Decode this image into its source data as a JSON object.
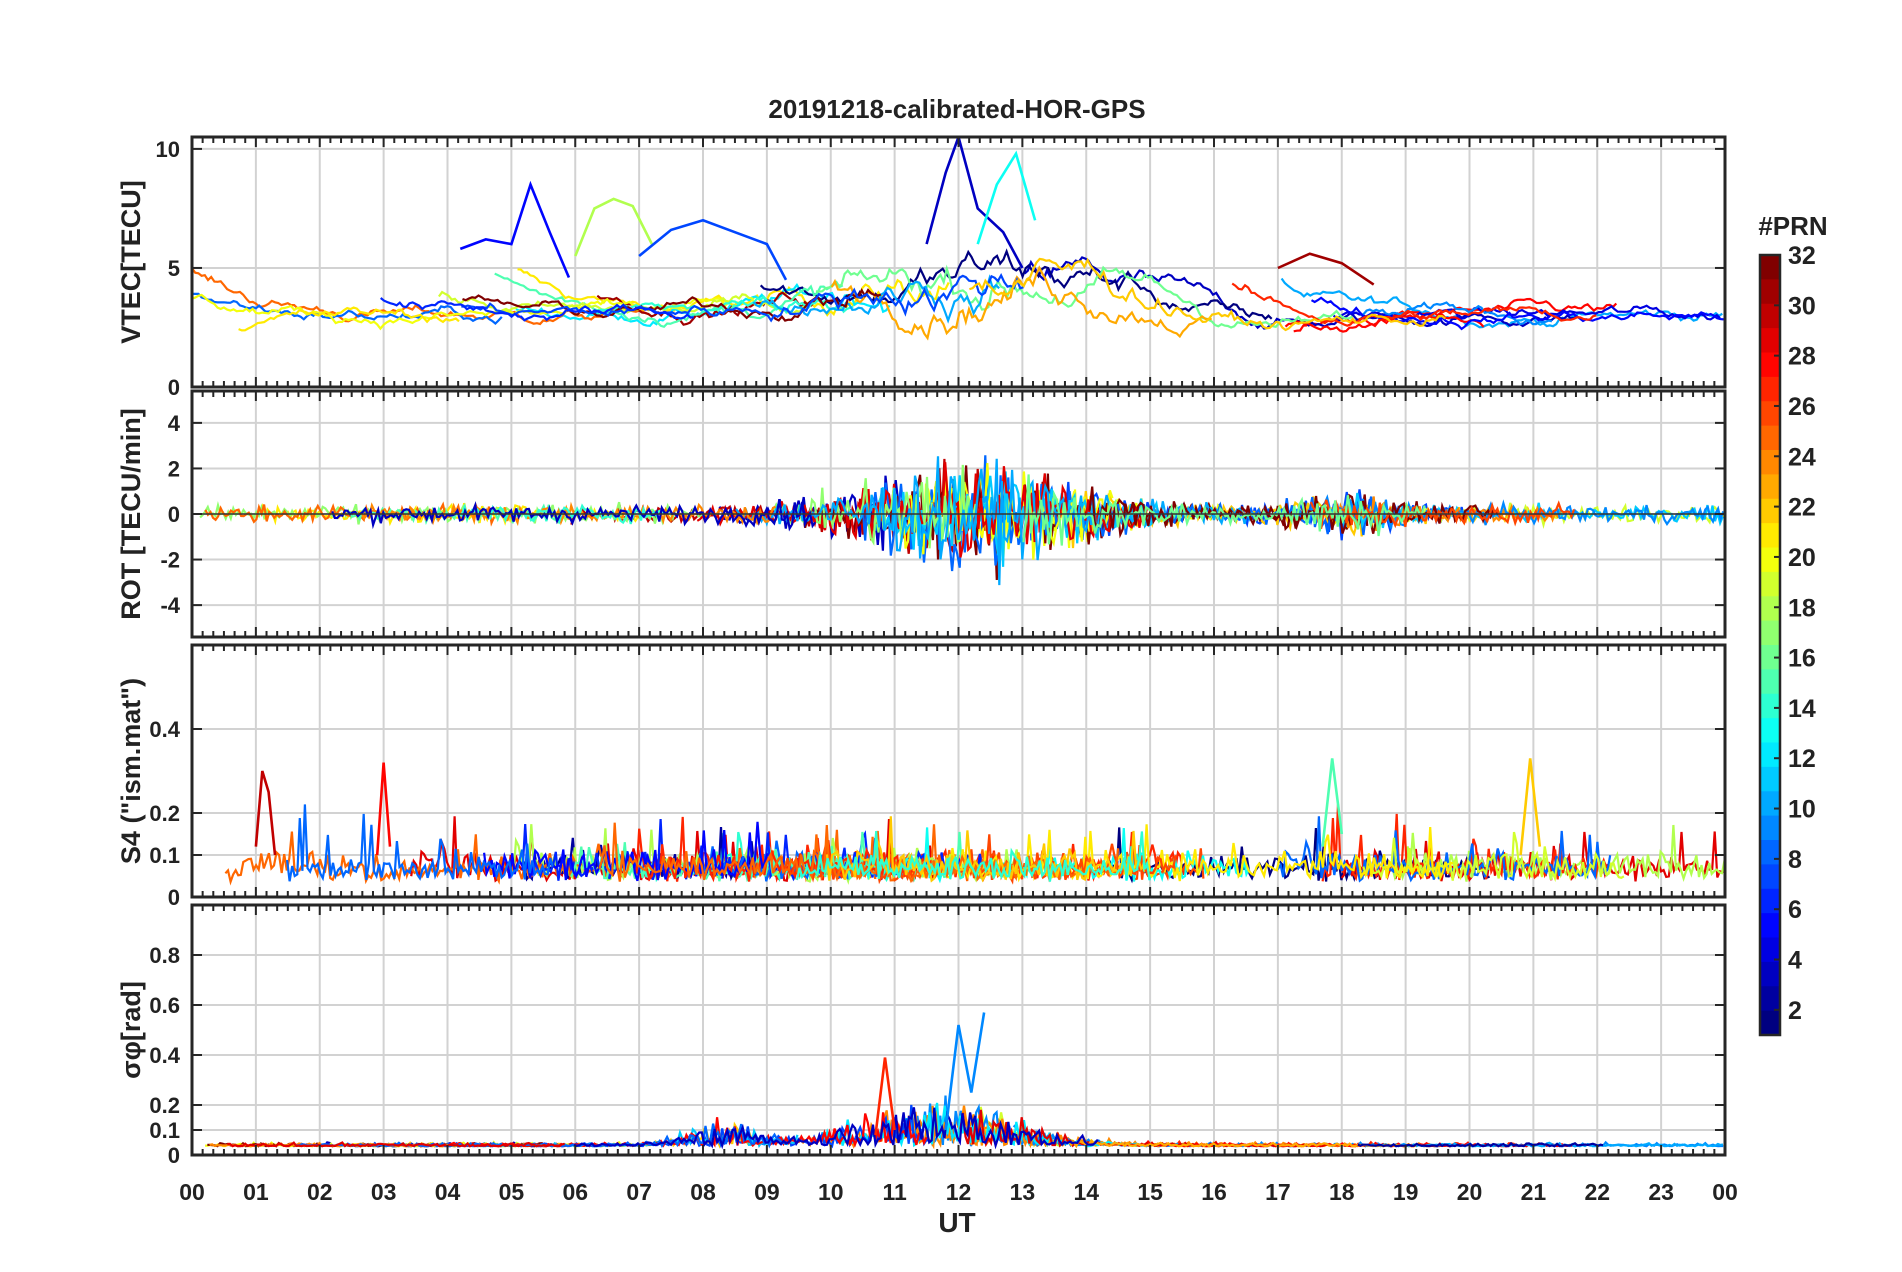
{
  "chart_data": {
    "type": "line",
    "title": "20191218-calibrated-HOR-GPS",
    "xlabel": "UT",
    "x_ticks": [
      "00",
      "01",
      "02",
      "03",
      "04",
      "05",
      "06",
      "07",
      "08",
      "09",
      "10",
      "11",
      "12",
      "13",
      "14",
      "15",
      "16",
      "17",
      "18",
      "19",
      "20",
      "21",
      "22",
      "23",
      "00"
    ],
    "xlim": [
      0,
      24
    ],
    "colorbar": {
      "label": "#PRN",
      "range": [
        1,
        32
      ],
      "ticks": [
        "32",
        "30",
        "28",
        "26",
        "24",
        "22",
        "20",
        "18",
        "16",
        "14",
        "12",
        "10",
        "8",
        "6",
        "4",
        "2"
      ],
      "colormap": "jet"
    },
    "panels": [
      {
        "ylabel": "VTEC[TECU]",
        "ylim": [
          0,
          10.5
        ],
        "y_ticks": [
          {
            "value": 0,
            "label": "0"
          },
          {
            "value": 5,
            "label": "5"
          },
          {
            "value": 10,
            "label": "10"
          }
        ],
        "grid": true,
        "series": [
          {
            "prn": 5,
            "x": [
              4.2,
              4.6,
              5.0,
              5.3,
              5.6,
              5.9
            ],
            "y": [
              5.8,
              6.2,
              6.0,
              8.5,
              6.5,
              4.6
            ]
          },
          {
            "prn": 18,
            "x": [
              6.0,
              6.3,
              6.6,
              6.9,
              7.2
            ],
            "y": [
              5.5,
              7.5,
              7.9,
              7.6,
              6.0
            ]
          },
          {
            "prn": 7,
            "x": [
              7.0,
              7.5,
              8.0,
              8.5,
              9.0,
              9.3
            ],
            "y": [
              5.5,
              6.6,
              7.0,
              6.5,
              6.0,
              4.5
            ]
          },
          {
            "prn": 3,
            "x": [
              11.5,
              11.8,
              12.0,
              12.3,
              12.7,
              13.0
            ],
            "y": [
              6.0,
              9.0,
              10.5,
              7.5,
              6.5,
              5.0
            ]
          },
          {
            "prn": 13,
            "x": [
              12.3,
              12.6,
              12.9,
              13.2
            ],
            "y": [
              6.0,
              8.5,
              9.8,
              7.0
            ]
          },
          {
            "prn": 31,
            "x": [
              17.0,
              17.5,
              18.0,
              18.5
            ],
            "y": [
              5.0,
              5.6,
              5.2,
              4.3
            ]
          }
        ]
      },
      {
        "ylabel": "ROT [TECU/min]",
        "ylim": [
          -5.4,
          5.4
        ],
        "y_ticks": [
          {
            "value": -4,
            "label": "-4"
          },
          {
            "value": -2,
            "label": "-2"
          },
          {
            "value": 0,
            "label": "0"
          },
          {
            "value": 2,
            "label": "2"
          },
          {
            "value": 4,
            "label": "4"
          }
        ],
        "grid": true,
        "series": []
      },
      {
        "ylabel": "S4 (\"ism.mat\")",
        "ylim": [
          0,
          0.6
        ],
        "y_ticks": [
          {
            "value": 0,
            "label": "0"
          },
          {
            "value": 0.1,
            "label": "0.1"
          },
          {
            "value": 0.2,
            "label": "0.2"
          },
          {
            "value": 0.4,
            "label": "0.4"
          }
        ],
        "grid": true,
        "series": [
          {
            "prn": 30,
            "x": [
              1.0,
              1.1,
              1.2,
              1.3
            ],
            "y": [
              0.12,
              0.3,
              0.25,
              0.1
            ]
          },
          {
            "prn": 28,
            "x": [
              2.9,
              3.0,
              3.1
            ],
            "y": [
              0.1,
              0.32,
              0.12
            ]
          },
          {
            "prn": 15,
            "x": [
              17.7,
              17.85,
              18.0
            ],
            "y": [
              0.12,
              0.33,
              0.15
            ]
          },
          {
            "prn": 22,
            "x": [
              20.8,
              20.95,
              21.1
            ],
            "y": [
              0.1,
              0.33,
              0.12
            ]
          }
        ]
      },
      {
        "ylabel": "σφ[rad]",
        "ylim": [
          0,
          1.0
        ],
        "y_ticks": [
          {
            "value": 0,
            "label": "0"
          },
          {
            "value": 0.1,
            "label": "0.1"
          },
          {
            "value": 0.2,
            "label": "0.2"
          },
          {
            "value": 0.4,
            "label": "0.4"
          },
          {
            "value": 0.6,
            "label": "0.6"
          },
          {
            "value": 0.8,
            "label": "0.8"
          }
        ],
        "grid": true,
        "series": [
          {
            "prn": 9,
            "x": [
              11.8,
              12.0,
              12.2,
              12.4
            ],
            "y": [
              0.1,
              0.52,
              0.25,
              0.57
            ]
          },
          {
            "prn": 27,
            "x": [
              10.7,
              10.85,
              11.0
            ],
            "y": [
              0.08,
              0.39,
              0.1
            ]
          }
        ]
      }
    ]
  }
}
